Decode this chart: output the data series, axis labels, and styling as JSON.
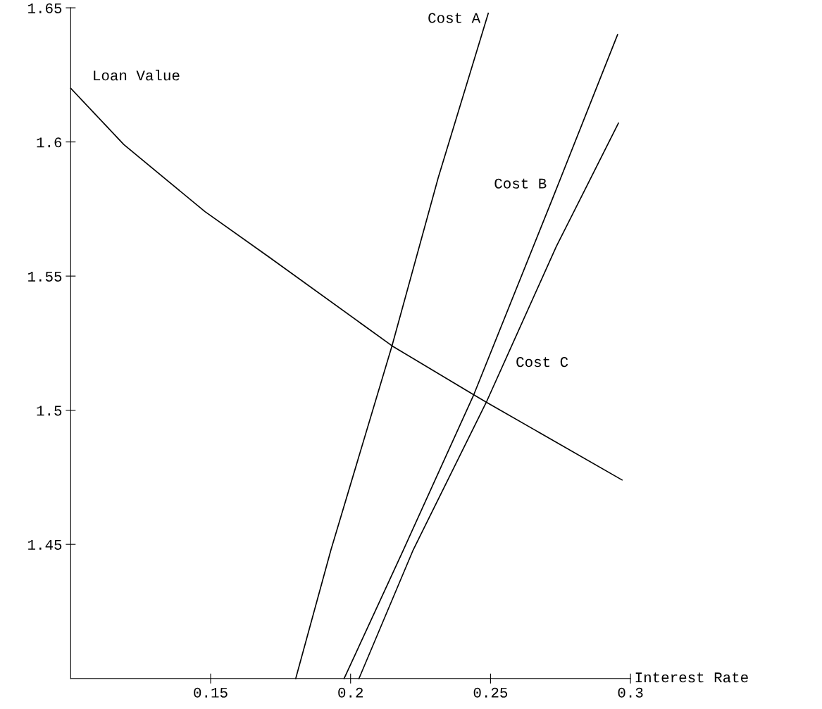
{
  "chart_data": {
    "type": "line",
    "xlabel": "Interest Rate",
    "series": [
      {
        "name": "Loan Value",
        "color": "#000000",
        "x": [
          0.1,
          0.119,
          0.148,
          0.171,
          0.2148,
          0.2436,
          0.2485,
          0.297
        ],
        "values": [
          1.62,
          1.599,
          1.574,
          1.557,
          1.524,
          1.506,
          1.503,
          1.474
        ]
      },
      {
        "name": "Cost A",
        "color": "#000000",
        "x": [
          0.1804,
          0.193,
          0.2148,
          0.2314,
          0.2492
        ],
        "values": [
          1.4,
          1.448,
          1.524,
          1.587,
          1.648
        ]
      },
      {
        "name": "Cost B",
        "color": "#000000",
        "x": [
          0.1977,
          0.2189,
          0.2441,
          0.2722,
          0.2954
        ],
        "values": [
          1.4,
          1.448,
          1.506,
          1.579,
          1.64
        ]
      },
      {
        "name": "Cost C",
        "color": "#000000",
        "x": [
          0.203,
          0.2224,
          0.2485,
          0.2735,
          0.2957
        ],
        "values": [
          1.4,
          1.448,
          1.503,
          1.561,
          1.607
        ]
      }
    ],
    "xlim": [
      0.1,
      0.3
    ],
    "ylim": [
      1.4,
      1.65
    ],
    "xticks": [
      0.15,
      0.2,
      0.25,
      0.3
    ],
    "yticks": [
      1.45,
      1.5,
      1.55,
      1.6,
      1.65
    ],
    "grid": false,
    "legend": false
  }
}
